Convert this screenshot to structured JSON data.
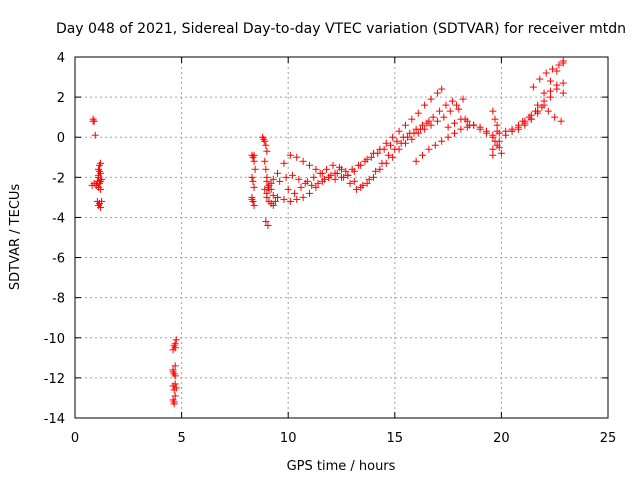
{
  "chart_data": {
    "type": "scatter",
    "title": "Day 048 of 2021, Sidereal Day-to-day VTEC variation (SDTVAR) for receiver mtdn",
    "xlabel": "GPS time / hours",
    "ylabel": "SDTVAR / TECUs",
    "xlim": [
      0,
      25
    ],
    "ylim": [
      -14,
      4
    ],
    "xticks": [
      "0",
      "5",
      "10",
      "15",
      "20",
      "25"
    ],
    "yticks": [
      "4",
      "2",
      "0",
      "-2",
      "-4",
      "-6",
      "-8",
      "-10",
      "-12",
      "-14"
    ],
    "grid": true,
    "marker": "+",
    "color": "#ff0000",
    "series": [
      {
        "name": "SDTVAR",
        "x": [
          0.8,
          0.85,
          0.9,
          0.95,
          1.0,
          1.05,
          1.1,
          1.1,
          1.15,
          1.2,
          1.2,
          1.25,
          1.1,
          1.15,
          1.2,
          1.05,
          1.1,
          1.15,
          1.2,
          1.25,
          1.1,
          1.15,
          1.2,
          0.85,
          0.9,
          1.0,
          4.6,
          4.65,
          4.7,
          4.75,
          4.6,
          4.65,
          4.7,
          4.6,
          4.65,
          4.7,
          4.75,
          4.6,
          4.65,
          4.7,
          4.65,
          4.7,
          4.6,
          4.7,
          8.3,
          8.35,
          8.4,
          8.45,
          8.3,
          8.35,
          8.4,
          8.3,
          8.35,
          8.4,
          8.3,
          8.4,
          8.8,
          8.85,
          8.9,
          8.95,
          9.0,
          8.9,
          8.95,
          8.9,
          9.0,
          9.1,
          9.2,
          9.3,
          9.0,
          9.1,
          9.2,
          9.3,
          9.4,
          9.5,
          9.0,
          9.1,
          9.2,
          9.3,
          8.95,
          9.05,
          9.0,
          9.05,
          9.5,
          9.8,
          10.1,
          10.4,
          10.7,
          11.0,
          11.3,
          11.6,
          11.9,
          12.2,
          12.5,
          12.8,
          13.1,
          13.4,
          13.7,
          14.0,
          14.3,
          14.6,
          14.9,
          15.2,
          15.5,
          15.8,
          16.1,
          16.4,
          16.7,
          17.0,
          17.2,
          9.5,
          9.8,
          10.1,
          10.4,
          10.7,
          11.0,
          11.3,
          11.6,
          11.9,
          12.2,
          12.5,
          12.8,
          13.1,
          13.4,
          13.7,
          14.0,
          14.3,
          14.6,
          14.9,
          15.2,
          15.5,
          15.8,
          16.1,
          16.4,
          16.7,
          17.0,
          17.3,
          17.6,
          17.9,
          18.2,
          9.6,
          9.9,
          10.2,
          10.5,
          10.8,
          11.1,
          11.4,
          11.7,
          12.0,
          12.3,
          12.6,
          12.9,
          13.2,
          13.5,
          13.8,
          14.1,
          14.4,
          14.7,
          15.0,
          15.3,
          15.6,
          15.9,
          16.2,
          16.5,
          16.8,
          17.1,
          17.4,
          17.7,
          18.0,
          18.3,
          18.5,
          10.0,
          10.3,
          10.6,
          10.9,
          11.2,
          11.5,
          11.8,
          12.1,
          12.4,
          12.7,
          13.0,
          13.3,
          13.6,
          13.9,
          14.2,
          14.5,
          14.8,
          15.1,
          15.4,
          15.7,
          16.0,
          16.3,
          16.6,
          16.0,
          16.3,
          16.6,
          16.9,
          17.2,
          17.5,
          17.8,
          18.1,
          18.4,
          18.7,
          19.0,
          19.3,
          19.6,
          19.9,
          20.2,
          20.5,
          20.8,
          21.1,
          21.4,
          21.7,
          22.0,
          22.3,
          22.6,
          22.9,
          17.5,
          17.8,
          18.1,
          18.4,
          18.7,
          19.0,
          19.3,
          19.6,
          19.9,
          20.2,
          20.5,
          20.8,
          21.1,
          21.4,
          21.7,
          22.0,
          22.3,
          22.6,
          22.9,
          19.6,
          19.7,
          19.8,
          19.9,
          20.0,
          19.6,
          19.7,
          19.8,
          19.6,
          19.8,
          20.5,
          20.8,
          21.1,
          21.4,
          21.7,
          22.0,
          22.3,
          22.6,
          22.9,
          21.0,
          21.3,
          21.6,
          21.9,
          22.2,
          22.5,
          22.8,
          21.5,
          21.8,
          22.1,
          22.4,
          22.7,
          22.9
        ],
        "y": [
          -2.4,
          0.9,
          0.8,
          0.1,
          -2.4,
          -2.2,
          -2.0,
          -1.6,
          -1.4,
          -1.3,
          -1.8,
          -2.1,
          -2.5,
          -2.3,
          -2.6,
          -3.2,
          -3.4,
          -3.3,
          -3.5,
          -3.2,
          -1.9,
          -1.7,
          -2.2,
          0.8,
          -2.3,
          -2.4,
          -10.6,
          -10.4,
          -10.3,
          -10.1,
          -11.6,
          -11.8,
          -11.4,
          -12.4,
          -12.6,
          -12.3,
          -12.5,
          -13.1,
          -13.2,
          -12.9,
          -13.3,
          -11.9,
          -11.7,
          -10.5,
          -0.9,
          -1.0,
          -1.2,
          -1.6,
          -2.0,
          -2.2,
          -2.5,
          -3.0,
          -3.2,
          -3.4,
          -3.1,
          -0.9,
          0.0,
          -0.1,
          -0.2,
          -0.4,
          -0.7,
          -1.2,
          -1.6,
          -2.6,
          -2.2,
          -2.4,
          -2.6,
          -2.9,
          -3.0,
          -3.2,
          -3.3,
          -3.4,
          -3.2,
          -3.0,
          -2.8,
          -2.6,
          -2.3,
          -2.1,
          -4.2,
          -4.4,
          -2.0,
          -2.5,
          -1.8,
          -1.3,
          -0.9,
          -1.0,
          -1.2,
          -1.4,
          -1.6,
          -1.8,
          -2.0,
          -2.1,
          -2.0,
          -1.9,
          -1.7,
          -1.4,
          -1.1,
          -0.8,
          -0.6,
          -0.3,
          0.0,
          0.3,
          0.6,
          0.9,
          1.2,
          1.6,
          1.9,
          2.2,
          2.4,
          -3.0,
          -3.1,
          -3.2,
          -3.1,
          -3.0,
          -2.8,
          -2.5,
          -2.2,
          -2.0,
          -1.8,
          -1.6,
          -1.9,
          -2.2,
          -2.5,
          -2.3,
          -2.0,
          -1.6,
          -1.3,
          -1.0,
          -0.6,
          -0.3,
          -0.1,
          0.2,
          0.4,
          0.6,
          0.8,
          1.0,
          1.3,
          1.6,
          1.9,
          -2.2,
          -2.0,
          -1.9,
          -2.1,
          -2.3,
          -2.4,
          -2.3,
          -2.1,
          -1.9,
          -1.8,
          -2.0,
          -2.3,
          -2.6,
          -2.4,
          -2.1,
          -1.7,
          -1.3,
          -0.9,
          -0.6,
          -0.3,
          0.0,
          0.2,
          0.4,
          0.7,
          1.0,
          1.3,
          1.6,
          1.8,
          1.4,
          0.9,
          0.6,
          -2.6,
          -2.8,
          -2.5,
          -2.2,
          -2.0,
          -1.8,
          -1.6,
          -1.4,
          -1.5,
          -1.7,
          -1.6,
          -1.4,
          -1.2,
          -1.0,
          -0.8,
          -0.6,
          -0.4,
          -0.2,
          0.0,
          0.2,
          0.4,
          0.6,
          0.8,
          -1.2,
          -0.9,
          -0.6,
          -0.4,
          -0.2,
          0.0,
          0.2,
          0.4,
          0.5,
          0.6,
          0.5,
          0.3,
          0.1,
          0.2,
          0.3,
          0.4,
          0.6,
          0.8,
          1.1,
          1.6,
          2.2,
          2.8,
          3.3,
          3.7,
          0.5,
          0.7,
          0.9,
          0.8,
          0.6,
          0.4,
          0.2,
          0.0,
          -0.2,
          0.1,
          0.3,
          0.5,
          0.7,
          0.9,
          1.2,
          1.6,
          2.0,
          2.4,
          2.7,
          1.3,
          0.9,
          0.3,
          -0.5,
          -0.8,
          -0.6,
          -0.2,
          0.6,
          -0.9,
          -0.4,
          0.3,
          0.4,
          0.6,
          0.9,
          1.3,
          1.8,
          2.3,
          2.6,
          2.2,
          0.8,
          1.0,
          1.3,
          1.5,
          1.3,
          1.0,
          0.8,
          2.5,
          2.9,
          3.2,
          3.4,
          3.6,
          3.8
        ]
      }
    ]
  }
}
